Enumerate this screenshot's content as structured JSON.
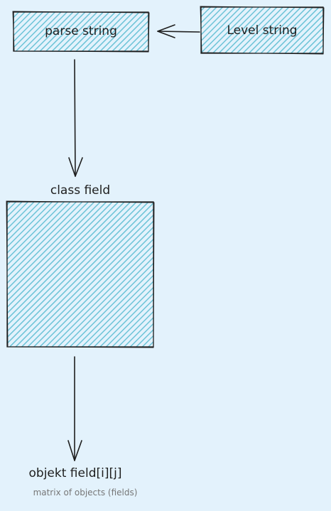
{
  "colors": {
    "background": "#e3f2fc",
    "fill": "#7fcbdc",
    "stroke": "#1e1e1e",
    "muted_text": "#777777"
  },
  "nodes": {
    "parse_string": "parse string",
    "level_string": "Level string",
    "class_field_box": ""
  },
  "labels": {
    "class_field": "class field",
    "objekt_field": "objekt field[i][j]",
    "matrix_caption": "matrix of objects (fields)"
  }
}
